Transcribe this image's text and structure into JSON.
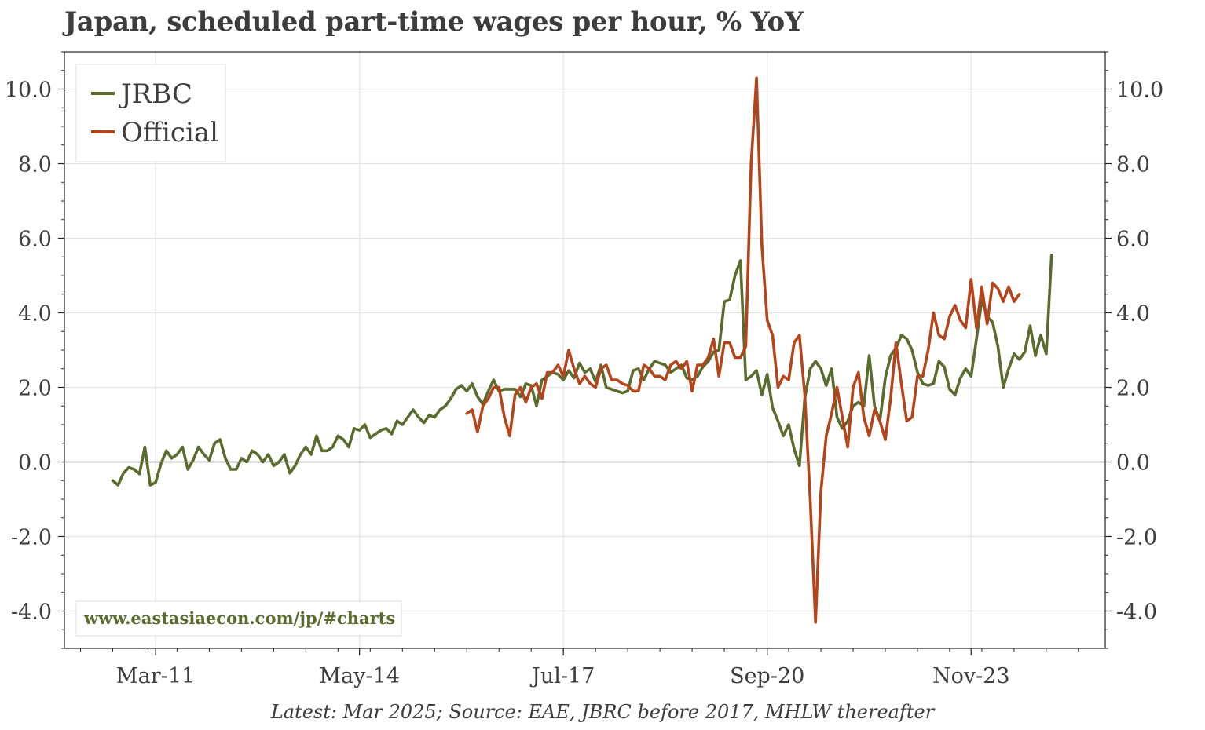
{
  "title": "Japan, scheduled part-time wages per hour, % YoY",
  "footnote": "Latest: Mar 2025; Source: EAE, JBRC before 2017, MHLW thereafter",
  "watermark": "www.eastasiaecon.com/jp/#charts",
  "colors": {
    "jrbc": "#5a6b2e",
    "official": "#b5441b",
    "zero_line": "#888888",
    "grid": "#e4e4e4",
    "text": "#3d3d3d",
    "watermark": "#5a6b2e"
  },
  "chart_data": {
    "type": "line",
    "title": "Japan, scheduled part-time wages per hour, % YoY",
    "xlabel": "",
    "ylabel": "",
    "x_tick_labels": [
      "Mar-11",
      "May-14",
      "Jul-17",
      "Sep-20",
      "Nov-23"
    ],
    "y_tick_labels": [
      "-4.0",
      "-2.0",
      "0.0",
      "2.0",
      "4.0",
      "6.0",
      "8.0",
      "10.0"
    ],
    "y_ticks": [
      -4,
      -2,
      0,
      2,
      4,
      6,
      8,
      10
    ],
    "ylim": [
      -5,
      11
    ],
    "xlim": [
      "2009-10",
      "2025-12"
    ],
    "grid": true,
    "zero_line": true,
    "legend": "top-left",
    "series": [
      {
        "name": "JRBC",
        "start": "2010-07",
        "frequency": "monthly",
        "values": [
          -0.5,
          -0.62,
          -0.3,
          -0.15,
          -0.2,
          -0.32,
          0.4,
          -0.62,
          -0.55,
          -0.05,
          0.3,
          0.1,
          0.2,
          0.4,
          -0.2,
          0.05,
          0.4,
          0.2,
          0.05,
          0.5,
          0.6,
          0.1,
          -0.2,
          -0.2,
          0.1,
          0.0,
          0.3,
          0.2,
          0.0,
          0.2,
          -0.1,
          0.0,
          0.2,
          -0.3,
          -0.1,
          0.2,
          0.4,
          0.2,
          0.7,
          0.3,
          0.3,
          0.4,
          0.7,
          0.6,
          0.4,
          0.9,
          0.85,
          1.0,
          0.65,
          0.75,
          0.85,
          0.9,
          0.75,
          1.1,
          1.0,
          1.2,
          1.4,
          1.2,
          1.05,
          1.25,
          1.2,
          1.4,
          1.5,
          1.7,
          1.95,
          2.05,
          1.9,
          2.1,
          1.75,
          1.55,
          1.9,
          2.2,
          1.9,
          1.95,
          1.95,
          1.95,
          1.75,
          2.1,
          2.05,
          1.5,
          2.2,
          2.3,
          2.4,
          2.35,
          2.2,
          2.45,
          2.25,
          2.65,
          2.4,
          2.5,
          2.15,
          2.6,
          2.0,
          1.95,
          1.9,
          1.85,
          1.9,
          2.45,
          2.5,
          2.2,
          2.5,
          2.7,
          2.65,
          2.6,
          2.4,
          2.5,
          2.6,
          2.25,
          2.2,
          2.3,
          2.55,
          2.7,
          2.95,
          3.0,
          4.3,
          4.35,
          5.0,
          5.4,
          2.2,
          2.3,
          2.45,
          1.8,
          2.35,
          1.45,
          1.1,
          0.7,
          1.0,
          0.35,
          -0.1,
          1.7,
          2.5,
          2.7,
          2.5,
          2.05,
          2.5,
          1.2,
          0.9,
          1.1,
          1.5,
          1.6,
          1.5,
          2.85,
          1.5,
          1.1,
          2.25,
          2.85,
          3.05,
          3.4,
          3.3,
          3.0,
          2.4,
          2.1,
          2.05,
          2.1,
          2.7,
          2.55,
          1.95,
          1.8,
          2.25,
          2.5,
          2.3,
          3.3,
          4.35,
          3.9,
          3.75,
          3.1,
          2.0,
          2.5,
          2.9,
          2.75,
          2.95,
          3.65,
          2.85,
          3.4,
          2.9,
          5.55
        ]
      },
      {
        "name": "Official",
        "start": "2016-01",
        "frequency": "monthly",
        "values": [
          1.3,
          1.4,
          0.8,
          1.5,
          1.7,
          2.0,
          2.0,
          1.2,
          0.7,
          1.8,
          2.0,
          1.6,
          2.0,
          2.1,
          1.7,
          2.4,
          2.4,
          2.6,
          2.3,
          3.0,
          2.5,
          2.1,
          2.3,
          2.1,
          2.0,
          2.5,
          2.6,
          2.2,
          2.2,
          2.1,
          2.05,
          1.9,
          1.9,
          2.6,
          2.5,
          2.3,
          2.3,
          2.2,
          2.6,
          2.7,
          2.5,
          2.7,
          1.9,
          2.6,
          2.6,
          2.8,
          3.3,
          2.3,
          3.2,
          3.2,
          2.8,
          2.8,
          3.1,
          8.0,
          10.3,
          5.8,
          3.8,
          3.4,
          2.0,
          2.3,
          2.2,
          3.2,
          3.4,
          1.8,
          -1.0,
          -4.3,
          -0.8,
          0.7,
          1.3,
          2.0,
          1.2,
          0.4,
          2.0,
          2.4,
          1.2,
          0.7,
          1.4,
          1.1,
          0.6,
          1.7,
          3.2,
          2.1,
          1.1,
          1.2,
          2.3,
          2.3,
          3.0,
          4.0,
          3.4,
          3.3,
          3.9,
          4.2,
          3.8,
          3.6,
          4.9,
          3.6,
          4.7,
          3.7,
          4.8,
          4.65,
          4.3,
          4.7,
          4.3,
          4.5
        ]
      }
    ]
  }
}
